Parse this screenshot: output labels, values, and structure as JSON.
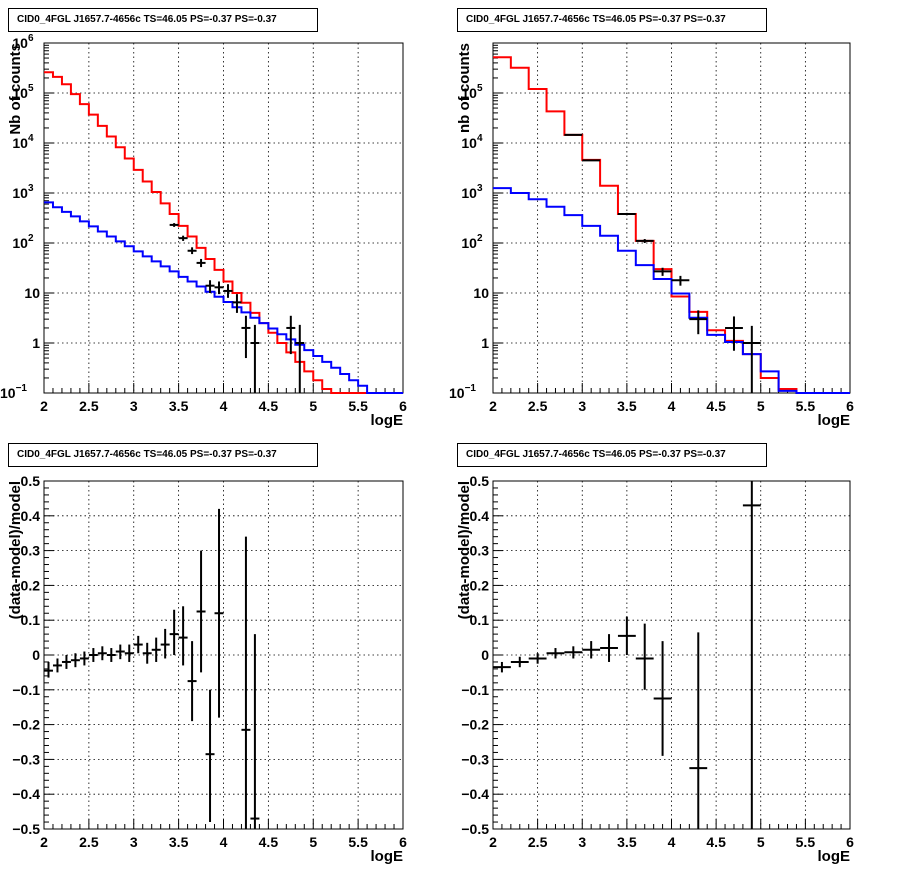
{
  "panels": [
    {
      "title": "CID0_4FGL J1657.7-4656c TS=46.05 PS=-0.37 PS=-0.37",
      "chart_data": {
        "type": "line",
        "ylabel": "Nb of counts",
        "xlabel": "logE",
        "xlim": [
          2,
          6
        ],
        "ylim": [
          0.1,
          1000000
        ],
        "y_scale": "log",
        "grid": true,
        "x_ticks": [
          "2",
          "2.5",
          "3",
          "3.5",
          "4",
          "4.5",
          "5",
          "5.5",
          "6"
        ],
        "y_ticks": [
          {
            "v": 0.1,
            "label": "10",
            "sup": "−1"
          },
          {
            "v": 1,
            "label": "1",
            "sup": ""
          },
          {
            "v": 10,
            "label": "10",
            "sup": ""
          },
          {
            "v": 100,
            "label": "10",
            "sup": "2"
          },
          {
            "v": 1000,
            "label": "10",
            "sup": "3"
          },
          {
            "v": 10000,
            "label": "10",
            "sup": "4"
          },
          {
            "v": 100000,
            "label": "10",
            "sup": "5"
          },
          {
            "v": 1000000,
            "label": "10",
            "sup": "6"
          }
        ],
        "bin_edges": [
          2.0,
          2.1,
          2.2,
          2.3,
          2.4,
          2.5,
          2.6,
          2.7,
          2.8,
          2.9,
          3.0,
          3.1,
          3.2,
          3.3,
          3.4,
          3.5,
          3.6,
          3.7,
          3.8,
          3.9,
          4.0,
          4.1,
          4.2,
          4.3,
          4.4,
          4.5,
          4.6,
          4.7,
          4.8,
          4.9,
          5.0,
          5.1,
          5.2,
          5.3,
          5.4,
          5.5,
          5.6,
          5.7,
          5.8,
          5.9,
          6.0
        ],
        "series": [
          {
            "color": "#ff0000",
            "values": [
              260000,
              210000,
              150000,
              95000,
              60000,
              37000,
              22000,
              13500,
              8200,
              4900,
              2900,
              1700,
              1050,
              620,
              380,
              220,
              135,
              80,
              48,
              29,
              17,
              10,
              6.4,
              4.0,
              2.5,
              1.6,
              1.0,
              0.65,
              0.42,
              0.27,
              0.18,
              0.12,
              0.1,
              0.1,
              0.1,
              0.1,
              0.1,
              0.1,
              0.1,
              0.1
            ]
          },
          {
            "color": "#0000ff",
            "values": [
              650,
              520,
              420,
              340,
              270,
              215,
              170,
              135,
              108,
              86,
              68,
              54,
              43,
              34,
              27,
              21,
              17,
              13.5,
              10.6,
              8.4,
              6.6,
              5.2,
              4.1,
              3.2,
              2.5,
              1.95,
              1.5,
              1.18,
              0.92,
              0.72,
              0.55,
              0.42,
              0.32,
              0.24,
              0.18,
              0.14,
              0.1,
              0.1,
              0.1,
              0.1
            ]
          }
        ],
        "points": [
          {
            "x": 3.45,
            "y": 230,
            "xerr": 0.05,
            "ylo": 210,
            "yhi": 250
          },
          {
            "x": 3.55,
            "y": 125,
            "xerr": 0.05,
            "ylo": 110,
            "yhi": 140
          },
          {
            "x": 3.65,
            "y": 70,
            "xerr": 0.05,
            "ylo": 60,
            "yhi": 82
          },
          {
            "x": 3.75,
            "y": 40,
            "xerr": 0.05,
            "ylo": 33,
            "yhi": 48
          },
          {
            "x": 3.85,
            "y": 14,
            "xerr": 0.05,
            "ylo": 10,
            "yhi": 18
          },
          {
            "x": 3.95,
            "y": 13,
            "xerr": 0.05,
            "ylo": 9.5,
            "yhi": 17
          },
          {
            "x": 4.05,
            "y": 11,
            "xerr": 0.05,
            "ylo": 8,
            "yhi": 15
          },
          {
            "x": 4.15,
            "y": 6.5,
            "xerr": 0.05,
            "ylo": 4,
            "yhi": 9.5
          },
          {
            "x": 4.25,
            "y": 2,
            "xerr": 0.05,
            "ylo": 0.5,
            "yhi": 3.5
          },
          {
            "x": 4.35,
            "y": 1,
            "xerr": 0.05,
            "ylo": 0.1,
            "yhi": 2.3
          },
          {
            "x": 4.75,
            "y": 2,
            "xerr": 0.05,
            "ylo": 0.6,
            "yhi": 3.5
          },
          {
            "x": 4.85,
            "y": 1,
            "xerr": 0.05,
            "ylo": 0.1,
            "yhi": 2.3
          }
        ]
      }
    },
    {
      "title": "CID0_4FGL J1657.7-4656c TS=46.05 PS=-0.37 PS=-0.37",
      "chart_data": {
        "type": "line",
        "ylabel": "nb of counts",
        "xlabel": "logE",
        "xlim": [
          2,
          6
        ],
        "ylim": [
          0.1,
          1000000
        ],
        "y_scale": "log",
        "grid": true,
        "x_ticks": [
          "2",
          "2.5",
          "3",
          "3.5",
          "4",
          "4.5",
          "5",
          "5.5",
          "6"
        ],
        "y_ticks": [
          {
            "v": 0.1,
            "label": "10",
            "sup": "−1"
          },
          {
            "v": 1,
            "label": "1",
            "sup": ""
          },
          {
            "v": 10,
            "label": "10",
            "sup": ""
          },
          {
            "v": 100,
            "label": "10",
            "sup": "2"
          },
          {
            "v": 1000,
            "label": "10",
            "sup": "3"
          },
          {
            "v": 10000,
            "label": "10",
            "sup": "4"
          },
          {
            "v": 100000,
            "label": "10",
            "sup": "5"
          }
        ],
        "bin_edges": [
          2.0,
          2.2,
          2.4,
          2.6,
          2.8,
          3.0,
          3.2,
          3.4,
          3.6,
          3.8,
          4.0,
          4.2,
          4.4,
          4.6,
          4.8,
          5.0,
          5.2,
          5.4,
          5.6,
          5.8,
          6.0
        ],
        "series": [
          {
            "color": "#ff0000",
            "values": [
              520000,
              320000,
              120000,
              43000,
              14500,
              4600,
              1400,
              380,
              110,
              30,
              8.5,
              4.2,
              1.8,
              1.1,
              0.6,
              0.2,
              0.12,
              0.1,
              0.1,
              0.1
            ]
          },
          {
            "color": "#0000ff",
            "values": [
              1250,
              1000,
              750,
              530,
              360,
              220,
              140,
              70,
              36,
              19,
              9.8,
              3.2,
              1.45,
              1.05,
              0.6,
              0.27,
              0.11,
              0.1,
              0.1,
              0.1
            ]
          }
        ],
        "points": [
          {
            "x": 2.9,
            "y": 14500,
            "xerr": 0.1,
            "ylo": 14200,
            "yhi": 14800
          },
          {
            "x": 3.1,
            "y": 4500,
            "xerr": 0.1,
            "ylo": 4400,
            "yhi": 4600
          },
          {
            "x": 3.5,
            "y": 380,
            "xerr": 0.1,
            "ylo": 360,
            "yhi": 400
          },
          {
            "x": 3.7,
            "y": 110,
            "xerr": 0.1,
            "ylo": 100,
            "yhi": 120
          },
          {
            "x": 3.9,
            "y": 27,
            "xerr": 0.1,
            "ylo": 22,
            "yhi": 32
          },
          {
            "x": 4.1,
            "y": 18,
            "xerr": 0.1,
            "ylo": 14,
            "yhi": 22
          },
          {
            "x": 4.3,
            "y": 3,
            "xerr": 0.1,
            "ylo": 1.5,
            "yhi": 4.5
          },
          {
            "x": 4.7,
            "y": 2,
            "xerr": 0.1,
            "ylo": 0.7,
            "yhi": 3.4
          },
          {
            "x": 4.9,
            "y": 1,
            "xerr": 0.1,
            "ylo": 0.1,
            "yhi": 2.2
          }
        ]
      }
    },
    {
      "title": "CID0_4FGL J1657.7-4656c TS=46.05 PS=-0.37 PS=-0.37",
      "chart_data": {
        "type": "scatter",
        "ylabel": "(data-model)/model",
        "xlabel": "logE",
        "xlim": [
          2,
          6
        ],
        "ylim": [
          -0.5,
          0.5
        ],
        "y_scale": "linear",
        "grid": true,
        "x_ticks": [
          "2",
          "2.5",
          "3",
          "3.5",
          "4",
          "4.5",
          "5",
          "5.5",
          "6"
        ],
        "y_ticks": [
          {
            "v": -0.5,
            "label": "−0.5",
            "sup": ""
          },
          {
            "v": -0.4,
            "label": "−0.4",
            "sup": ""
          },
          {
            "v": -0.3,
            "label": "−0.3",
            "sup": ""
          },
          {
            "v": -0.2,
            "label": "−0.2",
            "sup": ""
          },
          {
            "v": -0.1,
            "label": "−0.1",
            "sup": ""
          },
          {
            "v": 0,
            "label": "0",
            "sup": ""
          },
          {
            "v": 0.1,
            "label": "0.1",
            "sup": ""
          },
          {
            "v": 0.2,
            "label": "0.2",
            "sup": ""
          },
          {
            "v": 0.3,
            "label": "0.3",
            "sup": ""
          },
          {
            "v": 0.4,
            "label": "0.4",
            "sup": ""
          },
          {
            "v": 0.5,
            "label": "0.5",
            "sup": ""
          }
        ],
        "points": [
          {
            "x": 2.05,
            "y": -0.045,
            "xerr": 0.05,
            "ylo": -0.065,
            "yhi": -0.02
          },
          {
            "x": 2.15,
            "y": -0.03,
            "xerr": 0.05,
            "ylo": -0.05,
            "yhi": -0.01
          },
          {
            "x": 2.25,
            "y": -0.02,
            "xerr": 0.05,
            "ylo": -0.04,
            "yhi": 0.0
          },
          {
            "x": 2.35,
            "y": -0.015,
            "xerr": 0.05,
            "ylo": -0.035,
            "yhi": 0.005
          },
          {
            "x": 2.45,
            "y": -0.01,
            "xerr": 0.05,
            "ylo": -0.03,
            "yhi": 0.01
          },
          {
            "x": 2.55,
            "y": 0.0,
            "xerr": 0.05,
            "ylo": -0.02,
            "yhi": 0.02
          },
          {
            "x": 2.65,
            "y": 0.005,
            "xerr": 0.05,
            "ylo": -0.015,
            "yhi": 0.025
          },
          {
            "x": 2.75,
            "y": 0.0,
            "xerr": 0.05,
            "ylo": -0.02,
            "yhi": 0.02
          },
          {
            "x": 2.85,
            "y": 0.01,
            "xerr": 0.05,
            "ylo": -0.012,
            "yhi": 0.03
          },
          {
            "x": 2.95,
            "y": 0.005,
            "xerr": 0.05,
            "ylo": -0.02,
            "yhi": 0.03
          },
          {
            "x": 3.05,
            "y": 0.03,
            "xerr": 0.05,
            "ylo": 0.005,
            "yhi": 0.055
          },
          {
            "x": 3.15,
            "y": 0.005,
            "xerr": 0.05,
            "ylo": -0.025,
            "yhi": 0.035
          },
          {
            "x": 3.25,
            "y": 0.015,
            "xerr": 0.05,
            "ylo": -0.02,
            "yhi": 0.05
          },
          {
            "x": 3.35,
            "y": 0.03,
            "xerr": 0.05,
            "ylo": -0.01,
            "yhi": 0.075
          },
          {
            "x": 3.45,
            "y": 0.06,
            "xerr": 0.05,
            "ylo": 0.0,
            "yhi": 0.13
          },
          {
            "x": 3.55,
            "y": 0.05,
            "xerr": 0.05,
            "ylo": -0.03,
            "yhi": 0.14
          },
          {
            "x": 3.65,
            "y": -0.075,
            "xerr": 0.05,
            "ylo": -0.19,
            "yhi": 0.04
          },
          {
            "x": 3.75,
            "y": 0.125,
            "xerr": 0.05,
            "ylo": -0.05,
            "yhi": 0.3
          },
          {
            "x": 3.85,
            "y": -0.285,
            "xerr": 0.05,
            "ylo": -0.48,
            "yhi": -0.1
          },
          {
            "x": 3.95,
            "y": 0.12,
            "xerr": 0.05,
            "ylo": -0.18,
            "yhi": 0.42
          },
          {
            "x": 4.25,
            "y": -0.215,
            "xerr": 0.05,
            "ylo": -0.5,
            "yhi": 0.34
          },
          {
            "x": 4.35,
            "y": -0.47,
            "xerr": 0.05,
            "ylo": -0.5,
            "yhi": 0.06
          }
        ]
      }
    },
    {
      "title": "CID0_4FGL J1657.7-4656c TS=46.05 PS=-0.37 PS=-0.37",
      "chart_data": {
        "type": "scatter",
        "ylabel": "(data-model)/model",
        "xlabel": "logE",
        "xlim": [
          2,
          6
        ],
        "ylim": [
          -0.5,
          0.5
        ],
        "y_scale": "linear",
        "grid": true,
        "x_ticks": [
          "2",
          "2.5",
          "3",
          "3.5",
          "4",
          "4.5",
          "5",
          "5.5",
          "6"
        ],
        "y_ticks": [
          {
            "v": -0.5,
            "label": "−0.5",
            "sup": ""
          },
          {
            "v": -0.4,
            "label": "−0.4",
            "sup": ""
          },
          {
            "v": -0.3,
            "label": "−0.3",
            "sup": ""
          },
          {
            "v": -0.2,
            "label": "−0.2",
            "sup": ""
          },
          {
            "v": -0.1,
            "label": "−0.1",
            "sup": ""
          },
          {
            "v": 0,
            "label": "0",
            "sup": ""
          },
          {
            "v": 0.1,
            "label": "0.1",
            "sup": ""
          },
          {
            "v": 0.2,
            "label": "0.2",
            "sup": ""
          },
          {
            "v": 0.3,
            "label": "0.3",
            "sup": ""
          },
          {
            "v": 0.4,
            "label": "0.4",
            "sup": ""
          },
          {
            "v": 0.5,
            "label": "0.5",
            "sup": ""
          }
        ],
        "points": [
          {
            "x": 2.1,
            "y": -0.035,
            "xerr": 0.1,
            "ylo": -0.05,
            "yhi": -0.02
          },
          {
            "x": 2.3,
            "y": -0.02,
            "xerr": 0.1,
            "ylo": -0.035,
            "yhi": -0.005
          },
          {
            "x": 2.5,
            "y": -0.01,
            "xerr": 0.1,
            "ylo": -0.025,
            "yhi": 0.005
          },
          {
            "x": 2.7,
            "y": 0.005,
            "xerr": 0.1,
            "ylo": -0.01,
            "yhi": 0.02
          },
          {
            "x": 2.9,
            "y": 0.008,
            "xerr": 0.1,
            "ylo": -0.01,
            "yhi": 0.025
          },
          {
            "x": 3.1,
            "y": 0.015,
            "xerr": 0.1,
            "ylo": -0.01,
            "yhi": 0.04
          },
          {
            "x": 3.3,
            "y": 0.02,
            "xerr": 0.1,
            "ylo": -0.02,
            "yhi": 0.06
          },
          {
            "x": 3.5,
            "y": 0.055,
            "xerr": 0.1,
            "ylo": 0.0,
            "yhi": 0.11
          },
          {
            "x": 3.7,
            "y": -0.01,
            "xerr": 0.1,
            "ylo": -0.1,
            "yhi": 0.09
          },
          {
            "x": 3.9,
            "y": -0.125,
            "xerr": 0.1,
            "ylo": -0.29,
            "yhi": 0.04
          },
          {
            "x": 4.3,
            "y": -0.325,
            "xerr": 0.1,
            "ylo": -0.5,
            "yhi": 0.065
          },
          {
            "x": 4.9,
            "y": 0.43,
            "xerr": 0.1,
            "ylo": -0.5,
            "yhi": 0.5
          }
        ]
      }
    }
  ]
}
